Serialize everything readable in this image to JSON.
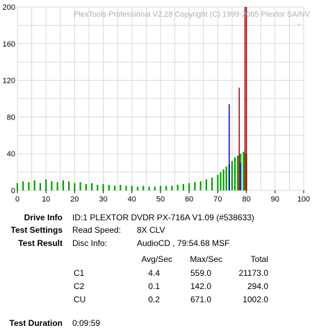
{
  "chart_data": {
    "type": "bar",
    "title": "PlexTools Professional V2.28 Copyright (C) 1999-2005 Plextor SA/NV",
    "xlim": [
      0,
      100
    ],
    "ylim": [
      0,
      200
    ],
    "x_ticks": [
      "0",
      "10",
      "20",
      "30",
      "40",
      "50",
      "60",
      "70",
      "80",
      "90",
      "100"
    ],
    "y_ticks": [
      "0",
      "40",
      "80",
      "120",
      "160",
      "200"
    ],
    "grid": true,
    "series": [
      {
        "color": "#00a000",
        "description_source": "C1 errors per second (green fill)",
        "x": [
          0,
          2,
          4,
          6,
          8,
          10,
          12,
          14,
          16,
          18,
          20,
          22,
          24,
          26,
          28,
          30,
          32,
          34,
          36,
          38,
          40,
          42,
          44,
          46,
          48,
          50,
          52,
          54,
          56,
          58,
          60,
          62,
          64,
          66,
          68,
          70,
          71,
          72,
          73,
          74,
          75,
          76,
          77,
          78,
          79,
          80
        ],
        "values": [
          8,
          10,
          9,
          11,
          8,
          12,
          10,
          9,
          11,
          10,
          8,
          9,
          7,
          8,
          6,
          7,
          6,
          5,
          6,
          5,
          5,
          4,
          5,
          4,
          4,
          5,
          5,
          5,
          6,
          7,
          8,
          9,
          10,
          12,
          14,
          17,
          20,
          23,
          26,
          28,
          32,
          36,
          38,
          40,
          42,
          40
        ]
      },
      {
        "color": "#0000c0",
        "description_source": "C2 spikes (blue)",
        "x": [
          74,
          78
        ],
        "values": [
          94,
          30
        ]
      },
      {
        "color": "#a00000",
        "description_source": "CU spikes (red)",
        "x": [
          77.5,
          79.5,
          80
        ],
        "values": [
          112,
          200,
          200
        ]
      }
    ]
  },
  "watermark_corner": "-",
  "drive_info": {
    "label": "Drive Info",
    "value": "ID:1 PLEXTOR DVDR PX-716A V1.09 (#538633)"
  },
  "test_settings": {
    "label": "Test Settings",
    "key": "Read Speed:",
    "value": "8X CLV"
  },
  "test_result": {
    "label": "Test Result",
    "key": "Disc Info:",
    "value": "AudioCD , 79:54.68 MSF"
  },
  "table": {
    "headers": [
      "Avg/Sec",
      "Max/Sec",
      "Total"
    ],
    "rows": [
      {
        "name": "C1",
        "avg": "4.4",
        "max": "559.0",
        "total": "21173.0"
      },
      {
        "name": "C2",
        "avg": "0.1",
        "max": "142.0",
        "total": "294.0"
      },
      {
        "name": "CU",
        "avg": "0.2",
        "max": "671.0",
        "total": "1002.0"
      }
    ]
  },
  "test_duration": {
    "label": "Test Duration",
    "value": "0:09:59"
  }
}
